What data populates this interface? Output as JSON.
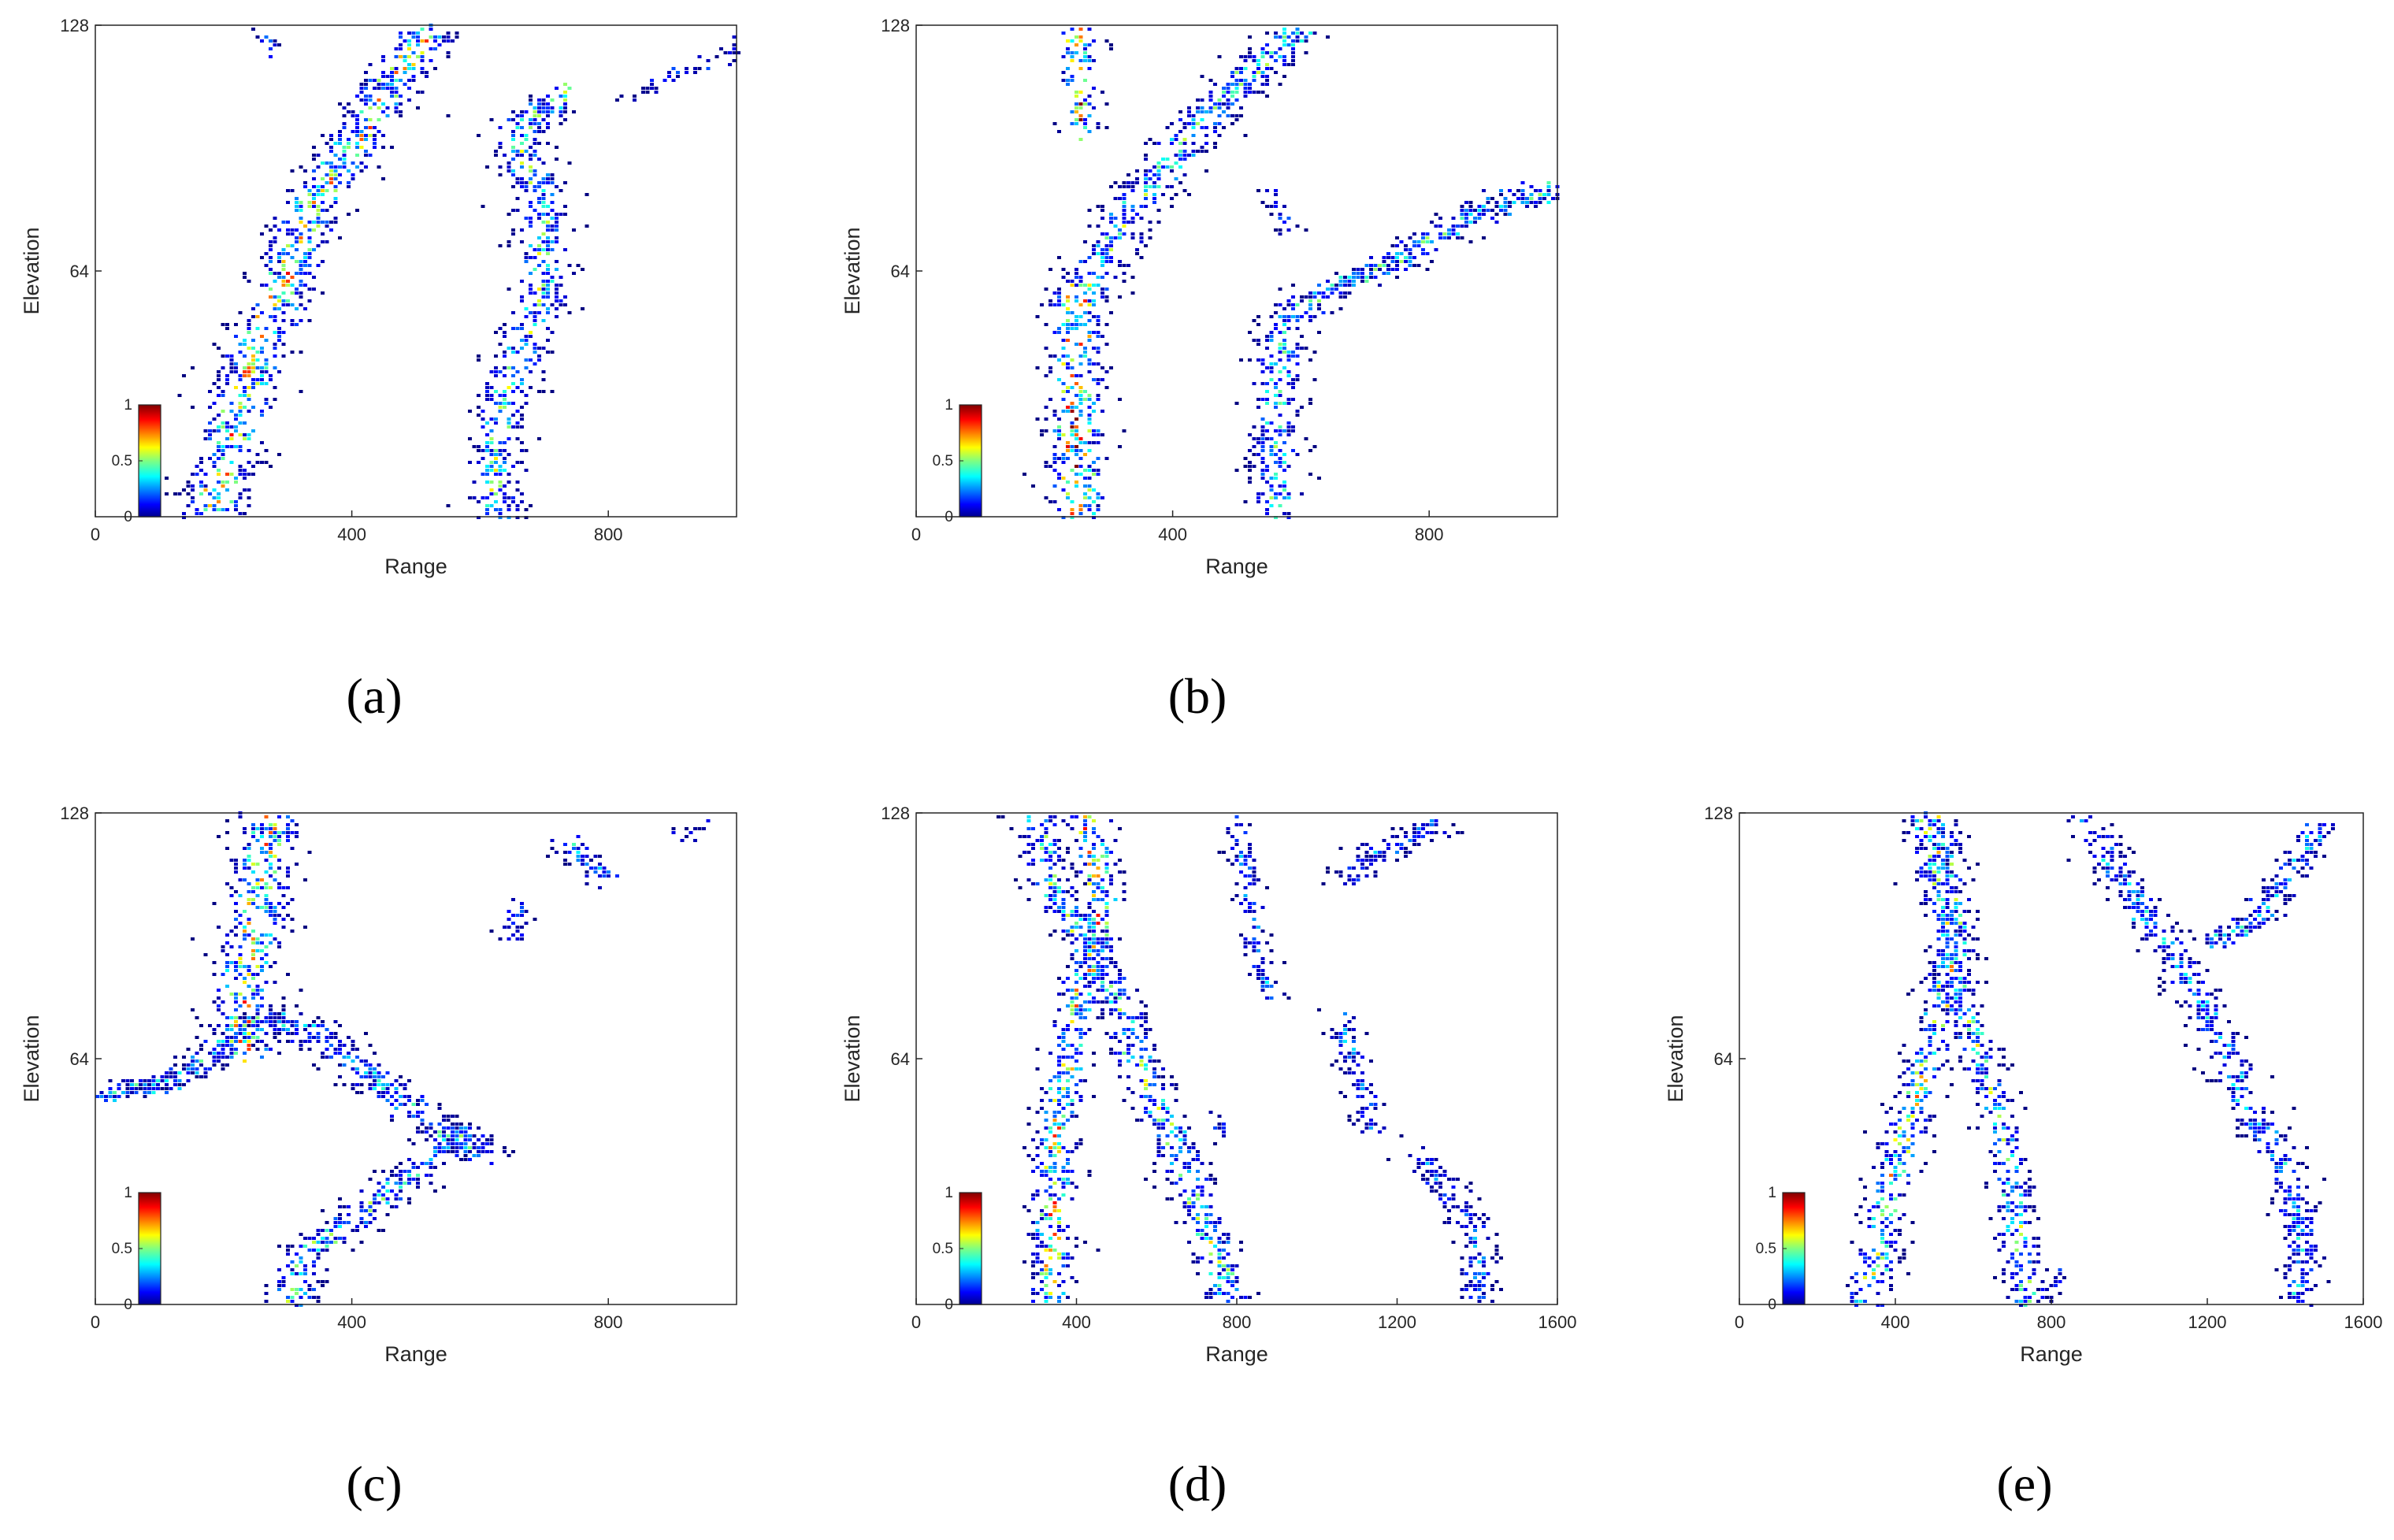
{
  "chart_data": [
    {
      "type": "scatter",
      "panel": "(a)",
      "xlabel": "Range",
      "ylabel": "Elevation",
      "xlim": [
        0,
        1000
      ],
      "ylim": [
        0,
        128
      ],
      "xticks": [
        "0",
        "400",
        "800"
      ],
      "xtick_values": [
        0,
        400,
        800
      ],
      "yticks": [
        "64",
        "128"
      ],
      "ytick_values": [
        64,
        128
      ],
      "colorbar": {
        "ticks": [
          "0",
          "0.5",
          "1"
        ],
        "range": [
          0,
          1
        ],
        "colormap": "jet",
        "placement": "lower-left"
      },
      "tracks": [
        {
          "points": [
            [
              180,
              0
            ],
            [
              230,
              35
            ],
            [
              290,
              60
            ],
            [
              330,
              80
            ],
            [
              390,
              95
            ],
            [
              450,
              110
            ],
            [
              520,
              128
            ]
          ],
          "width": 45,
          "intensity": 0.6
        },
        {
          "points": [
            [
              620,
              0
            ],
            [
              630,
              30
            ],
            [
              700,
              60
            ],
            [
              690,
              85
            ],
            [
              650,
              100
            ],
            [
              730,
              110
            ]
          ],
          "width": 38,
          "intensity": 0.45
        },
        {
          "points": [
            [
              820,
              110
            ],
            [
              900,
              115
            ],
            [
              1000,
              122
            ]
          ],
          "width": 12,
          "intensity": 0.15
        },
        {
          "points": [
            [
              260,
              128
            ],
            [
              270,
              122
            ]
          ],
          "width": 12,
          "intensity": 0.2
        }
      ]
    },
    {
      "type": "scatter",
      "panel": "(b)",
      "xlabel": "Range",
      "ylabel": "Elevation",
      "xlim": [
        0,
        1000
      ],
      "ylim": [
        0,
        128
      ],
      "xticks": [
        "0",
        "400",
        "800"
      ],
      "xtick_values": [
        0,
        400,
        800
      ],
      "yticks": [
        "64",
        "128"
      ],
      "ytick_values": [
        64,
        128
      ],
      "colorbar": {
        "ticks": [
          "0",
          "0.5",
          "1"
        ],
        "range": [
          0,
          1
        ],
        "colormap": "jet",
        "placement": "lower-left"
      },
      "tracks": [
        {
          "points": [
            [
              250,
              0
            ],
            [
              245,
              30
            ],
            [
              250,
              60
            ]
          ],
          "width": 40,
          "intensity": 0.75
        },
        {
          "points": [
            [
              260,
              60
            ],
            [
              330,
              80
            ],
            [
              400,
              95
            ],
            [
              480,
              110
            ],
            [
              600,
              128
            ]
          ],
          "width": 40,
          "intensity": 0.45
        },
        {
          "points": [
            [
              250,
              100
            ],
            [
              255,
              115
            ],
            [
              245,
              128
            ]
          ],
          "width": 25,
          "intensity": 0.75
        },
        {
          "points": [
            [
              560,
              0
            ],
            [
              555,
              25
            ],
            [
              570,
              50
            ],
            [
              620,
              58
            ],
            [
              730,
              65
            ],
            [
              870,
              80
            ],
            [
              1000,
              86
            ]
          ],
          "width": 35,
          "intensity": 0.4
        },
        {
          "points": [
            [
              550,
              85
            ],
            [
              580,
              75
            ]
          ],
          "width": 15,
          "intensity": 0.2
        }
      ]
    },
    {
      "type": "scatter",
      "panel": "(c)",
      "xlabel": "Range",
      "ylabel": "Elevation",
      "xlim": [
        0,
        1000
      ],
      "ylim": [
        0,
        128
      ],
      "xticks": [
        "0",
        "400",
        "800"
      ],
      "xtick_values": [
        0,
        400,
        800
      ],
      "yticks": [
        "64",
        "128"
      ],
      "ytick_values": [
        64,
        128
      ],
      "colorbar": {
        "ticks": [
          "0",
          "0.5",
          "1"
        ],
        "range": [
          0,
          1
        ],
        "colormap": "jet",
        "placement": "lower-left"
      },
      "tracks": [
        {
          "points": [
            [
              0,
              55
            ],
            [
              100,
              58
            ],
            [
              180,
              65
            ],
            [
              250,
              75
            ],
            [
              330,
              72
            ],
            [
              440,
              58
            ],
            [
              540,
              45
            ],
            [
              590,
              40
            ]
          ],
          "width": 35,
          "intensity": 0.35
        },
        {
          "points": [
            [
              270,
              128
            ],
            [
              250,
              105
            ],
            [
              230,
              85
            ],
            [
              230,
              65
            ]
          ],
          "width": 45,
          "intensity": 0.6
        },
        {
          "points": [
            [
              300,
              0
            ],
            [
              330,
              15
            ],
            [
              420,
              25
            ],
            [
              500,
              35
            ],
            [
              560,
              45
            ],
            [
              600,
              40
            ]
          ],
          "width": 35,
          "intensity": 0.4
        },
        {
          "points": [
            [
              730,
              120
            ],
            [
              770,
              115
            ],
            [
              800,
              112
            ]
          ],
          "width": 25,
          "intensity": 0.3
        },
        {
          "points": [
            [
              640,
              95
            ],
            [
              660,
              105
            ]
          ],
          "width": 18,
          "intensity": 0.25
        },
        {
          "points": [
            [
              880,
              122
            ],
            [
              950,
              125
            ]
          ],
          "width": 8,
          "intensity": 0.1
        }
      ]
    },
    {
      "type": "scatter",
      "panel": "(d)",
      "xlabel": "Range",
      "ylabel": "Elevation",
      "xlim": [
        0,
        1600
      ],
      "ylim": [
        0,
        128
      ],
      "xticks": [
        "0",
        "400",
        "800",
        "1200",
        "1600"
      ],
      "xtick_values": [
        0,
        400,
        800,
        1200,
        1600
      ],
      "yticks": [
        "64",
        "128"
      ],
      "ytick_values": [
        64,
        128
      ],
      "colorbar": {
        "ticks": [
          "0",
          "0.5",
          "1"
        ],
        "range": [
          0,
          1
        ],
        "colormap": "jet",
        "placement": "lower-left"
      },
      "tracks": [
        {
          "points": [
            [
              330,
              0
            ],
            [
              340,
              40
            ],
            [
              380,
              70
            ],
            [
              430,
              90
            ],
            [
              460,
              105
            ],
            [
              420,
              128
            ]
          ],
          "width": 32,
          "intensity": 0.6
        },
        {
          "points": [
            [
              290,
              128
            ],
            [
              330,
              110
            ],
            [
              420,
              95
            ],
            [
              500,
              80
            ],
            [
              560,
              60
            ],
            [
              650,
              40
            ],
            [
              720,
              20
            ],
            [
              780,
              0
            ]
          ],
          "width": 32,
          "intensity": 0.45
        },
        {
          "points": [
            [
              800,
              128
            ],
            [
              820,
              110
            ],
            [
              850,
              90
            ],
            [
              880,
              80
            ]
          ],
          "width": 18,
          "intensity": 0.3
        },
        {
          "points": [
            [
              1050,
              75
            ],
            [
              1100,
              60
            ],
            [
              1140,
              45
            ]
          ],
          "width": 24,
          "intensity": 0.25
        },
        {
          "points": [
            [
              1070,
              110
            ],
            [
              1150,
              118
            ],
            [
              1300,
              125
            ]
          ],
          "width": 30,
          "intensity": 0.25
        },
        {
          "points": [
            [
              1250,
              40
            ],
            [
              1320,
              30
            ],
            [
              1390,
              20
            ],
            [
              1400,
              0
            ]
          ],
          "width": 26,
          "intensity": 0.25
        },
        {
          "points": [
            [
              740,
              50
            ],
            [
              770,
              45
            ]
          ],
          "width": 12,
          "intensity": 0.15
        }
      ]
    },
    {
      "type": "scatter",
      "panel": "(e)",
      "xlabel": "Range",
      "ylabel": "Elevation",
      "xlim": [
        0,
        1600
      ],
      "ylim": [
        0,
        128
      ],
      "xticks": [
        "0",
        "400",
        "800",
        "1200",
        "1600"
      ],
      "xtick_values": [
        0,
        400,
        800,
        1200,
        1600
      ],
      "yticks": [
        "64",
        "128"
      ],
      "ytick_values": [
        64,
        128
      ],
      "colorbar": {
        "ticks": [
          "0",
          "0.5",
          "1"
        ],
        "range": [
          0,
          1
        ],
        "colormap": "jet",
        "placement": "lower-left"
      },
      "tracks": [
        {
          "points": [
            [
              320,
              0
            ],
            [
              380,
              30
            ],
            [
              450,
              55
            ],
            [
              510,
              75
            ],
            [
              550,
              95
            ],
            [
              500,
              128
            ]
          ],
          "width": 30,
          "intensity": 0.55
        },
        {
          "points": [
            [
              470,
              128
            ],
            [
              520,
              100
            ],
            [
              560,
              80
            ],
            [
              620,
              65
            ],
            [
              680,
              40
            ],
            [
              720,
              10
            ],
            [
              740,
              0
            ]
          ],
          "width": 28,
          "intensity": 0.45
        },
        {
          "points": [
            [
              880,
              128
            ],
            [
              980,
              110
            ],
            [
              1080,
              95
            ],
            [
              1180,
              80
            ],
            [
              1250,
              65
            ],
            [
              1300,
              50
            ],
            [
              1380,
              40
            ],
            [
              1440,
              20
            ],
            [
              1430,
              0
            ]
          ],
          "width": 30,
          "intensity": 0.3
        },
        {
          "points": [
            [
              1200,
              95
            ],
            [
              1320,
              100
            ],
            [
              1420,
              115
            ],
            [
              1480,
              125
            ]
          ],
          "width": 28,
          "intensity": 0.3
        },
        {
          "points": [
            [
              760,
              0
            ],
            [
              820,
              8
            ]
          ],
          "width": 14,
          "intensity": 0.15
        }
      ]
    }
  ],
  "captions": {
    "a": "(a)",
    "b": "(b)",
    "c": "(c)",
    "d": "(d)",
    "e": "(e)"
  },
  "colors": {
    "axis": "#262626",
    "background": "#ffffff",
    "colormap": "jet"
  }
}
